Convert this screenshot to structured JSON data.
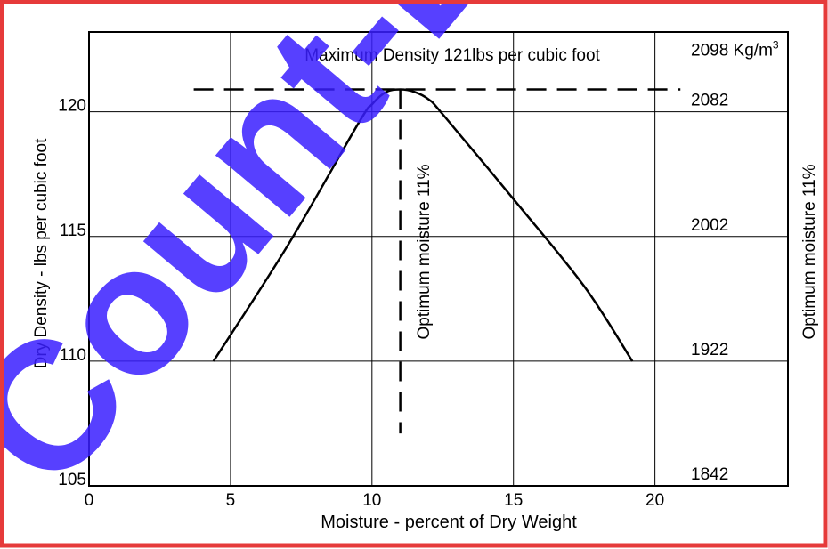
{
  "watermark": {
    "text": "Count-Eq",
    "color": "#3a1fff",
    "border_color": "#e63a3a"
  },
  "chart_data": {
    "type": "line",
    "title": "Maximum Density 121lbs per cubic foot",
    "xlabel": "Moisture - percent of Dry Weight",
    "ylabel": "Dry Density - lbs per cubic foot",
    "xlim": [
      0,
      24.7
    ],
    "ylim": [
      105,
      123.2
    ],
    "x_ticks": [
      0,
      5,
      10,
      15,
      20
    ],
    "y_ticks": [
      105,
      110,
      115,
      120
    ],
    "grid": true,
    "series": [
      {
        "x": [
          4.4,
          7.0,
          9.5,
          10.0,
          10.5,
          11.0,
          11.5,
          12.0,
          12.5,
          15.0,
          17.5,
          19.2
        ],
        "y": [
          110.0,
          114.6,
          119.5,
          120.3,
          120.8,
          120.9,
          120.8,
          120.5,
          119.9,
          116.5,
          113.0,
          110.0
        ]
      }
    ],
    "annotations": {
      "max_density_line": {
        "y": 120.9,
        "x_start": 3.7,
        "x_end": 20.9
      },
      "optimum_moisture_line": {
        "x": 11,
        "y_start": 107.1,
        "y_end": 120.9
      },
      "optimum_label_inside": "Optimum moisture 11%",
      "optimum_label_right": "Optimum moisture 11%"
    },
    "secondary_y_labels": [
      {
        "y": 122.5,
        "text": "2098 Kg/m",
        "sup": "3"
      },
      {
        "y": 120.5,
        "text": "2082"
      },
      {
        "y": 115.5,
        "text": "2002"
      },
      {
        "y": 110.5,
        "text": "1922"
      },
      {
        "y": 105.5,
        "text": "1842"
      }
    ]
  }
}
